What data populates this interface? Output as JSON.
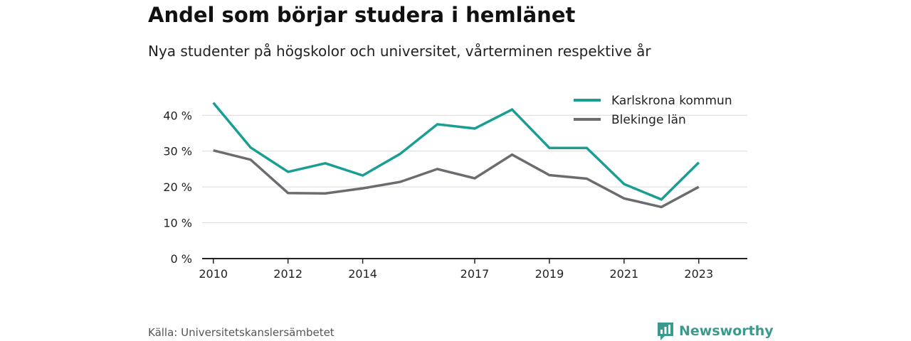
{
  "header": {
    "title": "Andel som börjar studera i hemlänet",
    "subtitle": "Nya studenter på högskolor och universitet, vårterminen respektive år"
  },
  "footer": {
    "source": "Källa: Universitetskanslersämbetet",
    "brand": "Newsworthy"
  },
  "colors": {
    "karlskrona": "#1a9e94",
    "blekinge": "#6b6b70",
    "grid": "#d9d9d9",
    "axis": "#222222",
    "brand": "#3a9a8e"
  },
  "chart_data": {
    "type": "line",
    "title": "Andel som börjar studera i hemlänet",
    "subtitle": "Nya studenter på högskolor och universitet, vårterminen respektive år",
    "x": [
      2010,
      2011,
      2012,
      2013,
      2014,
      2015,
      2016,
      2017,
      2018,
      2019,
      2020,
      2021,
      2022,
      2023
    ],
    "x_ticks": [
      2010,
      2012,
      2014,
      2017,
      2019,
      2021,
      2023
    ],
    "x_tick_labels": [
      "2010",
      "2012",
      "2014",
      "2017",
      "2019",
      "2021",
      "2023"
    ],
    "xlim": [
      2009.7,
      2024.3
    ],
    "ylim": [
      0,
      46
    ],
    "y_ticks": [
      0,
      10,
      20,
      30,
      40
    ],
    "y_tick_labels": [
      "0 %",
      "10 %",
      "20 %",
      "30 %",
      "40 %"
    ],
    "grid": true,
    "legend_position": "top-right",
    "series": [
      {
        "name": "Karlskrona kommun",
        "color": "#1a9e94",
        "values": [
          43.5,
          31.0,
          24.2,
          26.6,
          23.2,
          29.2,
          37.5,
          36.3,
          41.6,
          30.9,
          30.9,
          20.8,
          16.5,
          26.8
        ]
      },
      {
        "name": "Blekinge län",
        "color": "#6b6b70",
        "values": [
          30.2,
          27.6,
          18.3,
          18.2,
          19.6,
          21.4,
          25.0,
          22.4,
          29.0,
          23.3,
          22.3,
          16.8,
          14.4,
          20.0
        ]
      }
    ]
  }
}
